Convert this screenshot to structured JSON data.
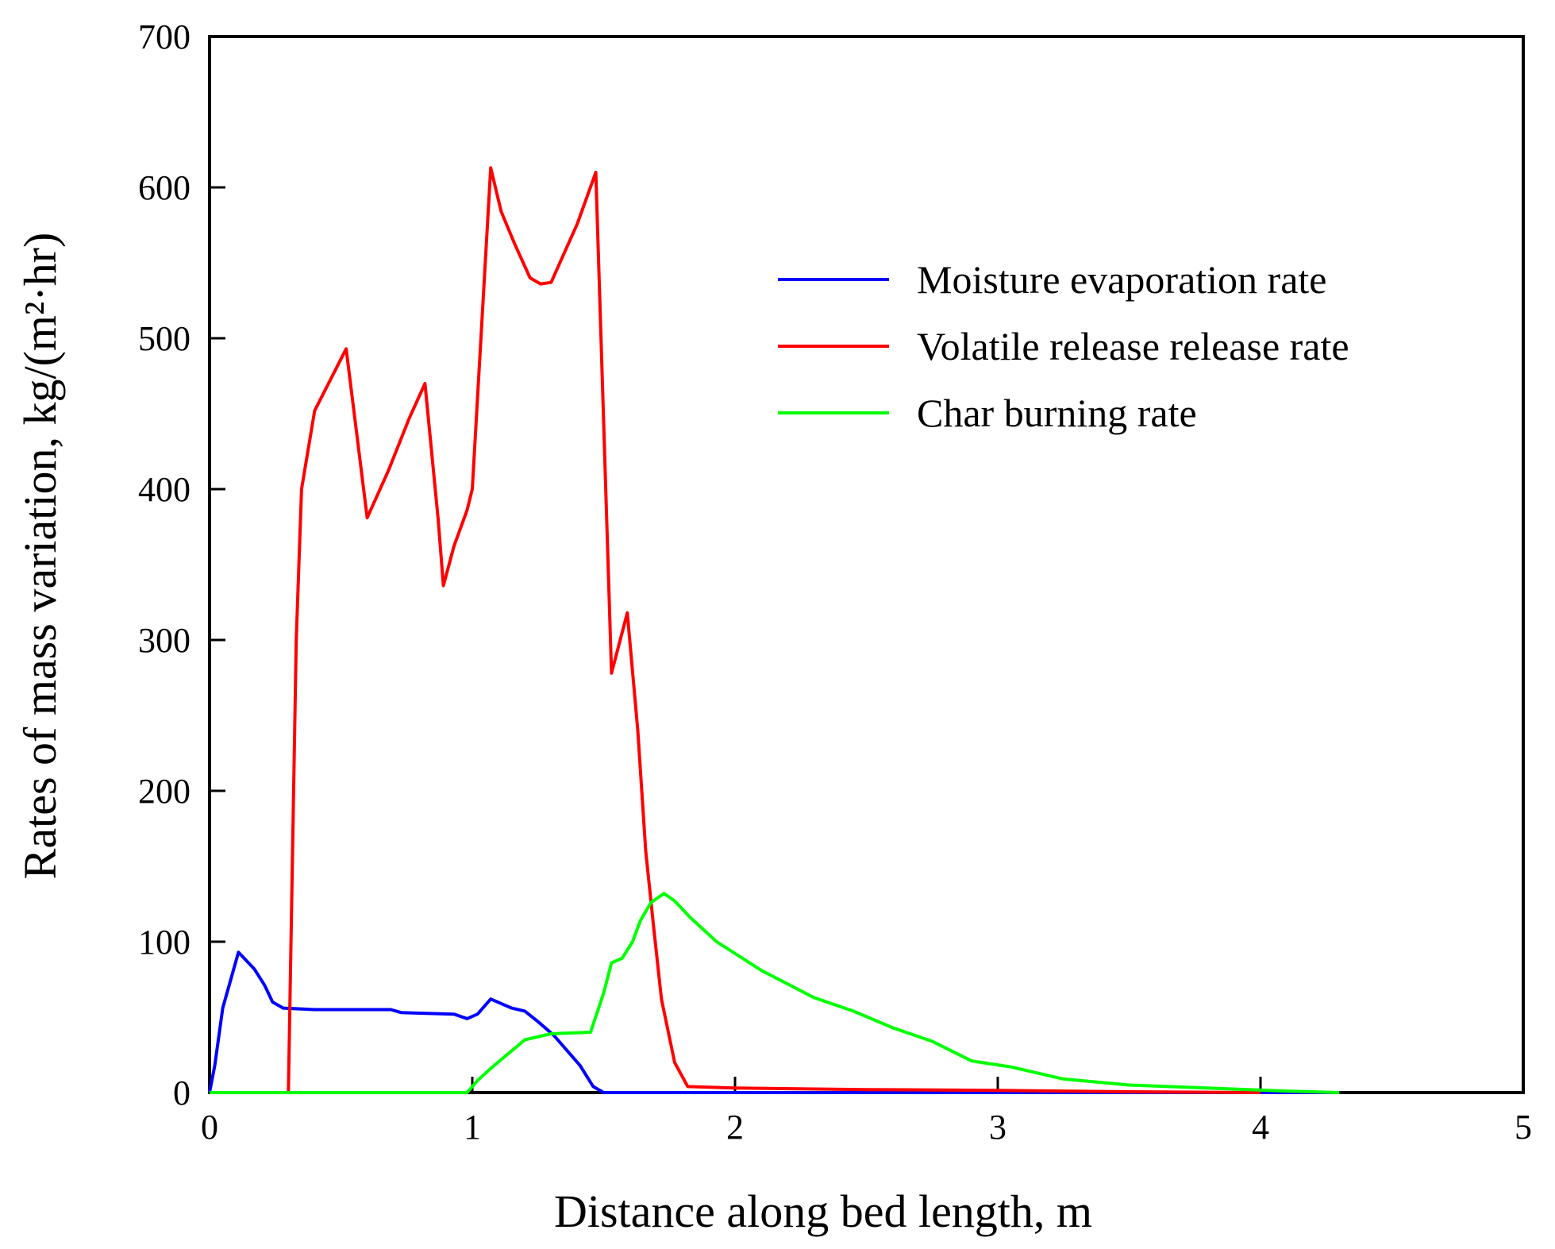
{
  "chart_data": {
    "type": "line",
    "title": "",
    "xlabel": "Distance along bed length, m",
    "ylabel": "Rates of mass variation, kg/(m²·hr)",
    "xlim": [
      0,
      5
    ],
    "ylim": [
      0,
      700
    ],
    "xticks": [
      0,
      1,
      2,
      3,
      4,
      5
    ],
    "yticks": [
      0,
      100,
      200,
      300,
      400,
      500,
      600,
      700
    ],
    "xtick_labels": [
      "0",
      "1",
      "2",
      "3",
      "4",
      "5"
    ],
    "ytick_labels": [
      "0",
      "100",
      "200",
      "300",
      "400",
      "500",
      "600",
      "700"
    ],
    "grid": false,
    "legend_position": "upper-right",
    "series": [
      {
        "name": "Moisture evaporation rate",
        "color": "#0000ff",
        "x": [
          0,
          0.02,
          0.05,
          0.11,
          0.17,
          0.21,
          0.24,
          0.28,
          0.4,
          0.69,
          0.73,
          0.93,
          0.98,
          1.02,
          1.07,
          1.15,
          1.2,
          1.25,
          1.31,
          1.41,
          1.46,
          1.5,
          1.6,
          2.0,
          3.0,
          4.3
        ],
        "y": [
          0,
          18,
          56,
          93,
          82,
          71,
          60,
          56,
          55,
          55,
          53,
          52,
          49,
          52,
          62,
          56,
          54,
          47,
          38,
          18,
          4,
          0,
          0,
          0,
          0,
          0
        ]
      },
      {
        "name": "Volatile release release rate",
        "color": "#ff0000",
        "x": [
          0,
          0.3,
          0.33,
          0.35,
          0.4,
          0.52,
          0.6,
          0.68,
          0.76,
          0.82,
          0.87,
          0.89,
          0.93,
          0.98,
          1.0,
          1.07,
          1.11,
          1.16,
          1.22,
          1.26,
          1.3,
          1.4,
          1.47,
          1.53,
          1.59,
          1.63,
          1.66,
          1.69,
          1.72,
          1.77,
          1.82,
          2.0,
          2.5,
          3.0,
          3.5,
          4.0
        ],
        "y": [
          0,
          0,
          300,
          400,
          452,
          493,
          381,
          412,
          447,
          470,
          380,
          336,
          362,
          386,
          400,
          613,
          584,
          563,
          540,
          536,
          537,
          576,
          610,
          278,
          318,
          240,
          160,
          110,
          62,
          20,
          4,
          3,
          2,
          1.5,
          0.5,
          0
        ]
      },
      {
        "name": "Char burning rate",
        "color": "#00ff00",
        "x": [
          0,
          0.98,
          1.02,
          1.07,
          1.2,
          1.3,
          1.45,
          1.5,
          1.53,
          1.57,
          1.61,
          1.64,
          1.68,
          1.73,
          1.77,
          1.83,
          1.93,
          2.1,
          2.3,
          2.45,
          2.6,
          2.75,
          2.9,
          3.05,
          3.25,
          3.5,
          3.8,
          4.1,
          4.3
        ],
        "y": [
          0,
          0,
          8,
          16,
          35,
          39,
          40,
          66,
          86,
          89,
          100,
          114,
          126,
          132,
          127,
          116,
          100,
          81,
          63,
          54,
          43,
          34,
          21,
          17,
          9,
          5,
          3,
          1,
          0
        ]
      }
    ]
  }
}
